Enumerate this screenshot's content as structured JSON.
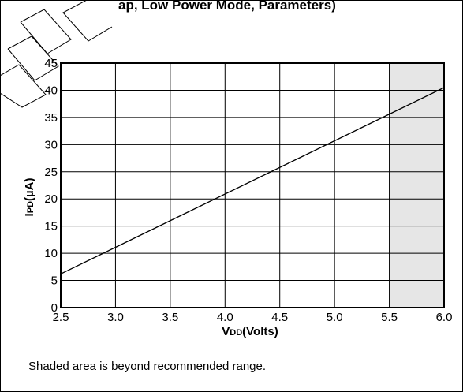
{
  "chart_data": {
    "type": "line",
    "title_fragment": "ap, Low Power Mode, Parameters)",
    "xlabel_main": "V",
    "xlabel_sub": "DD",
    "xlabel_tail": "(Volts)",
    "ylabel_main": "I",
    "ylabel_sub": "PD",
    "ylabel_tail": "(µA)",
    "x_ticks": [
      "2.5",
      "3.0",
      "3.5",
      "4.0",
      "4.5",
      "5.0",
      "5.5",
      "6.0"
    ],
    "y_ticks": [
      "0",
      "5",
      "10",
      "15",
      "20",
      "25",
      "30",
      "35",
      "40",
      "45"
    ],
    "xlim": [
      2.5,
      6.0
    ],
    "ylim": [
      0,
      45
    ],
    "grid": true,
    "shaded_region": {
      "x_start": 5.5,
      "x_end": 6.0,
      "color": "#e6e6e6"
    },
    "series": [
      {
        "x": [
          2.5,
          6.0
        ],
        "y": [
          6.2,
          40.5
        ],
        "color": "#000000"
      }
    ],
    "note": "Shaded area is beyond recommended range."
  }
}
